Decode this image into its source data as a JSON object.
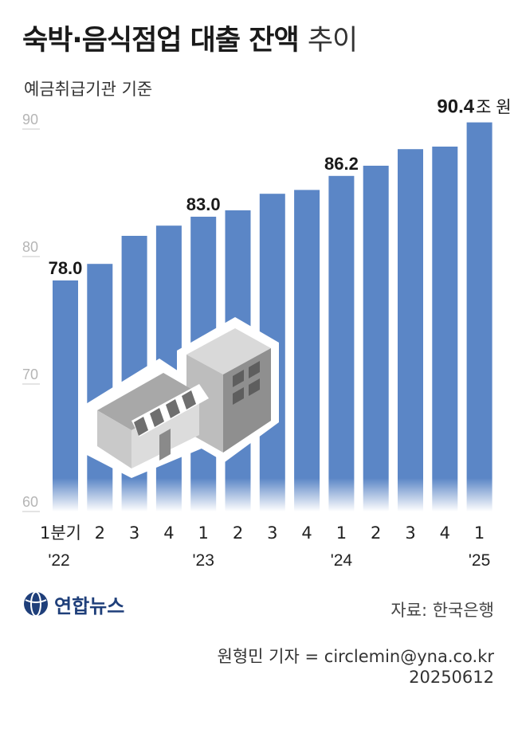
{
  "title": {
    "bold": "숙박·음식점업 대출 잔액",
    "light": "추이"
  },
  "subtitle": "예금취급기관 기준",
  "chart_data": {
    "type": "bar",
    "unit": "조 원",
    "ylim": [
      60,
      92
    ],
    "yticks": [
      "60",
      "70",
      "80",
      "90"
    ],
    "categories": [
      "1분기",
      "2",
      "3",
      "4",
      "1",
      "2",
      "3",
      "4",
      "1",
      "2",
      "3",
      "4",
      "1"
    ],
    "year_labels": [
      {
        "index": 0,
        "label": "'22"
      },
      {
        "index": 4,
        "label": "'23"
      },
      {
        "index": 8,
        "label": "'24"
      },
      {
        "index": 12,
        "label": "'25"
      }
    ],
    "values": [
      78.0,
      79.3,
      81.5,
      82.3,
      83.0,
      83.5,
      84.8,
      85.1,
      86.2,
      87.0,
      88.3,
      88.5,
      90.4
    ],
    "data_labels": [
      {
        "index": 0,
        "text": "78.0"
      },
      {
        "index": 4,
        "text": "83.0"
      },
      {
        "index": 8,
        "text": "86.2"
      },
      {
        "index": 12,
        "text": "90.4"
      }
    ],
    "bar_color": "#5b86c6"
  },
  "footer": {
    "logo_text": "연합뉴스",
    "source": "자료: 한국은행",
    "reporter": "원형민 기자 = circlemin@yna.co.kr",
    "date": "20250612"
  }
}
